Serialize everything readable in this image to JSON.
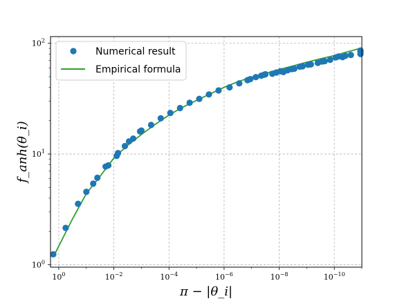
{
  "chart_data": {
    "type": "scatter",
    "title": "",
    "xlabel": "π − |θ_i|",
    "ylabel": "f_anh(θ_i)",
    "xscale": "log",
    "yscale": "log",
    "xaxis_reversed": true,
    "xlim_exponent": [
      0.3,
      -11.0
    ],
    "ylim": [
      0.95,
      115
    ],
    "grid": true,
    "legend_position": "top-left",
    "x_ticks": [
      {
        "base": "10",
        "exp": "0",
        "value": 1
      },
      {
        "base": "10",
        "exp": "−2",
        "value": 0.01
      },
      {
        "base": "10",
        "exp": "−4",
        "value": 0.0001
      },
      {
        "base": "10",
        "exp": "−6",
        "value": 1e-06
      },
      {
        "base": "10",
        "exp": "−8",
        "value": 1e-08
      },
      {
        "base": "10",
        "exp": "−10",
        "value": 1e-10
      }
    ],
    "y_ticks": [
      {
        "base": "10",
        "exp": "0",
        "value": 1
      },
      {
        "base": "10",
        "exp": "1",
        "value": 10
      },
      {
        "base": "10",
        "exp": "2",
        "value": 100
      }
    ],
    "series": [
      {
        "name": "Numerical result",
        "kind": "scatter",
        "color": "#1f77b4",
        "x_exponent": [
          0.2,
          -0.25,
          -0.7,
          -1.0,
          -1.25,
          -1.4,
          -1.7,
          -1.8,
          -2.1,
          -2.15,
          -2.4,
          -2.55,
          -2.7,
          -2.95,
          -3.0,
          -3.35,
          -3.7,
          -4.05,
          -4.4,
          -4.75,
          -5.1,
          -5.45,
          -5.8,
          -6.2,
          -6.55,
          -6.85,
          -6.95,
          -7.15,
          -7.35,
          -7.45,
          -7.5,
          -7.75,
          -7.9,
          -8.05,
          -8.15,
          -8.3,
          -8.45,
          -8.55,
          -8.75,
          -8.85,
          -9.05,
          -9.15,
          -9.4,
          -9.55,
          -9.65,
          -9.85,
          -10.05,
          -10.15,
          -10.3,
          -10.4,
          -10.6,
          -10.95,
          -10.95,
          -10.95
        ],
        "y": [
          1.24,
          2.15,
          3.55,
          4.55,
          5.4,
          6.1,
          7.7,
          7.9,
          9.6,
          10.2,
          11.8,
          13.0,
          13.8,
          16.0,
          16.3,
          18.3,
          21.0,
          23.5,
          26.0,
          29.0,
          31.5,
          34.5,
          37.5,
          40.0,
          43.5,
          46.5,
          47.5,
          49.5,
          51.0,
          52.0,
          52.5,
          53.0,
          54.5,
          56.0,
          55.0,
          57.0,
          58.5,
          59.0,
          61.5,
          62.0,
          64.0,
          64.5,
          66.5,
          68.5,
          69.0,
          71.0,
          74.5,
          76.0,
          75.0,
          77.0,
          78.5,
          80.0,
          84.0,
          86.0
        ]
      },
      {
        "name": "Empirical formula",
        "kind": "line",
        "color": "#2ca02c",
        "x_exponent": [
          0.18,
          -0.5,
          -1.0,
          -1.5,
          -2.0,
          -2.5,
          -3.0,
          -3.5,
          -4.0,
          -4.5,
          -5.0,
          -5.5,
          -6.0,
          -6.5,
          -7.0,
          -7.5,
          -8.0,
          -8.5,
          -9.0,
          -9.5,
          -10.0,
          -10.5,
          -11.0
        ],
        "y": [
          1.2,
          2.6,
          4.4,
          6.3,
          9.2,
          12.0,
          15.0,
          18.5,
          22.5,
          26.5,
          30.5,
          35.0,
          40.0,
          45.0,
          49.5,
          53.5,
          58.0,
          62.5,
          67.5,
          72.5,
          77.5,
          84.0,
          91.0
        ]
      }
    ]
  }
}
